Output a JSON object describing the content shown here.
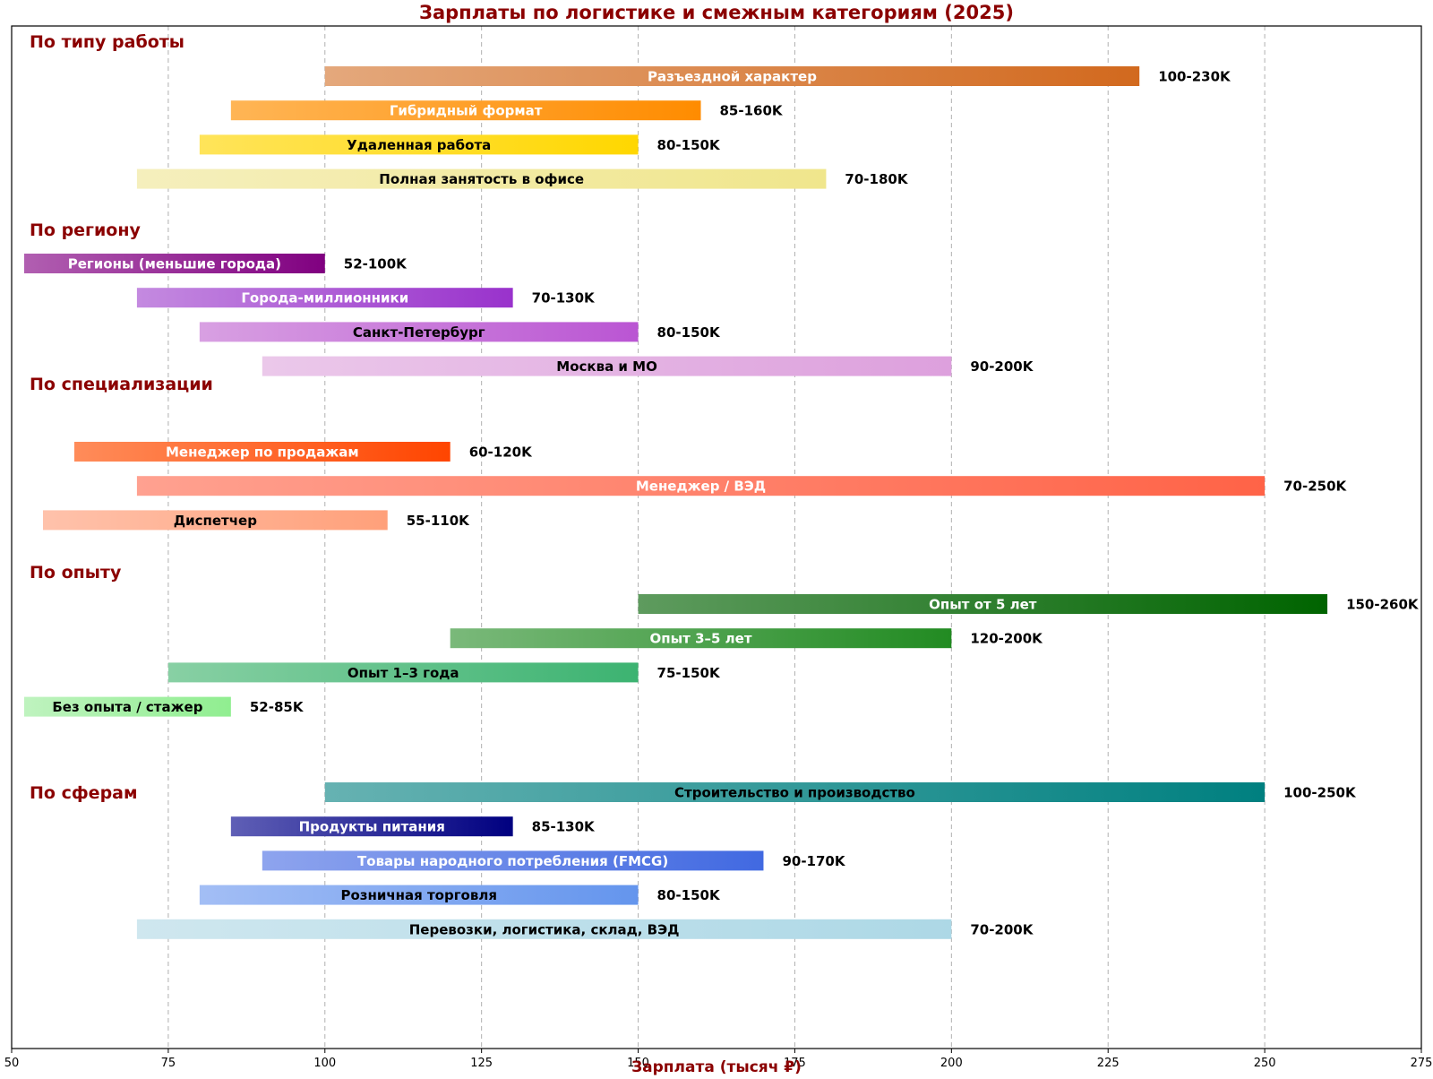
{
  "chart_data": {
    "type": "bar",
    "orientation": "horizontal",
    "title": "Зарплаты по логистике и смежным категориям (2025)",
    "xlabel": "Зарплата (тысяч ₽)",
    "ylabel": "",
    "xlim": [
      50,
      275
    ],
    "xticks": [
      50,
      75,
      100,
      125,
      150,
      175,
      200,
      225,
      250,
      275
    ],
    "grid": "vertical dashed",
    "accent_color": "#8b0000",
    "groups": [
      {
        "name": "По типу работы",
        "bars": [
          {
            "label": "Разъездной характер",
            "range": [
              100,
              230
            ],
            "value_label": "100-230K",
            "color_from": "#e4a87c",
            "color_to": "#d2691e",
            "text_color": "#ffffff"
          },
          {
            "label": "Гибридный формат",
            "range": [
              85,
              160
            ],
            "value_label": "85-160K",
            "color_from": "#ffb555",
            "color_to": "#ff8c00",
            "text_color": "#ffffff"
          },
          {
            "label": "Удаленная работа",
            "range": [
              80,
              150
            ],
            "value_label": "80-150K",
            "color_from": "#ffe45a",
            "color_to": "#ffd700",
            "text_color": "#000000"
          },
          {
            "label": "Полная занятость в офисе",
            "range": [
              70,
              180
            ],
            "value_label": "70-180K",
            "color_from": "#f5efbd",
            "color_to": "#f0e68c",
            "text_color": "#000000"
          }
        ]
      },
      {
        "name": "По региону",
        "bars": [
          {
            "label": "Регионы (меньшие города)",
            "range": [
              52,
              100
            ],
            "value_label": "52-100K",
            "color_from": "#b15fb1",
            "color_to": "#800080",
            "text_color": "#ffffff"
          },
          {
            "label": "Города-миллионники",
            "range": [
              70,
              130
            ],
            "value_label": "70-130K",
            "color_from": "#c48ae0",
            "color_to": "#9932cc",
            "text_color": "#ffffff"
          },
          {
            "label": "Санкт-Петербург",
            "range": [
              80,
              150
            ],
            "value_label": "80-150K",
            "color_from": "#d8a0e2",
            "color_to": "#ba55d3",
            "text_color": "#000000"
          },
          {
            "label": "Москва и МО",
            "range": [
              90,
              200
            ],
            "value_label": "90-200K",
            "color_from": "#ebc8ea",
            "color_to": "#dda0dd",
            "text_color": "#000000"
          }
        ]
      },
      {
        "name": "По специализации",
        "bars": [
          {
            "label": "Менеджер по продажам",
            "range": [
              60,
              120
            ],
            "value_label": "60-120K",
            "color_from": "#ff8c5a",
            "color_to": "#ff4500",
            "text_color": "#ffffff"
          },
          {
            "label": "Менеджер / ВЭД",
            "range": [
              70,
              250
            ],
            "value_label": "70-250K",
            "color_from": "#ffa190",
            "color_to": "#ff6347",
            "text_color": "#ffffff"
          },
          {
            "label": "Диспетчер",
            "range": [
              55,
              110
            ],
            "value_label": "55-110K",
            "color_from": "#ffc2ab",
            "color_to": "#ffa07a",
            "text_color": "#000000"
          }
        ]
      },
      {
        "name": "По опыту",
        "bars": [
          {
            "label": "Опыт от 5 лет",
            "range": [
              150,
              260
            ],
            "value_label": "150-260K",
            "color_from": "#5e9b5e",
            "color_to": "#006400",
            "text_color": "#ffffff"
          },
          {
            "label": "Опыт 3–5 лет",
            "range": [
              120,
              200
            ],
            "value_label": "120-200K",
            "color_from": "#7ab97a",
            "color_to": "#228b22",
            "text_color": "#ffffff"
          },
          {
            "label": "Опыт 1–3 года",
            "range": [
              75,
              150
            ],
            "value_label": "75-150K",
            "color_from": "#88d0a4",
            "color_to": "#3cb371",
            "text_color": "#000000"
          },
          {
            "label": "Без опыта / стажер",
            "range": [
              52,
              85
            ],
            "value_label": "52-85K",
            "color_from": "#bff3bf",
            "color_to": "#90ee90",
            "text_color": "#000000"
          }
        ]
      },
      {
        "name": "По сферам",
        "bars": [
          {
            "label": "Строительство и производство",
            "range": [
              100,
              250
            ],
            "value_label": "100-250K",
            "color_from": "#66b2b2",
            "color_to": "#008080",
            "text_color": "#000000"
          },
          {
            "label": "Продукты питания",
            "range": [
              85,
              130
            ],
            "value_label": "85-130K",
            "color_from": "#5f5fb6",
            "color_to": "#000080",
            "text_color": "#ffffff"
          },
          {
            "label": "Товары народного потребления (FMCG)",
            "range": [
              90,
              170
            ],
            "value_label": "90-170K",
            "color_from": "#8ea4ee",
            "color_to": "#4169e1",
            "text_color": "#ffffff"
          },
          {
            "label": "Розничная торговля",
            "range": [
              80,
              150
            ],
            "value_label": "80-150K",
            "color_from": "#a3bef5",
            "color_to": "#6495ed",
            "text_color": "#000000"
          },
          {
            "label": "Перевозки, логистика, склад, ВЭД",
            "range": [
              70,
              200
            ],
            "value_label": "70-200K",
            "color_from": "#cfe7ef",
            "color_to": "#add8e6",
            "text_color": "#000000"
          }
        ]
      }
    ]
  }
}
